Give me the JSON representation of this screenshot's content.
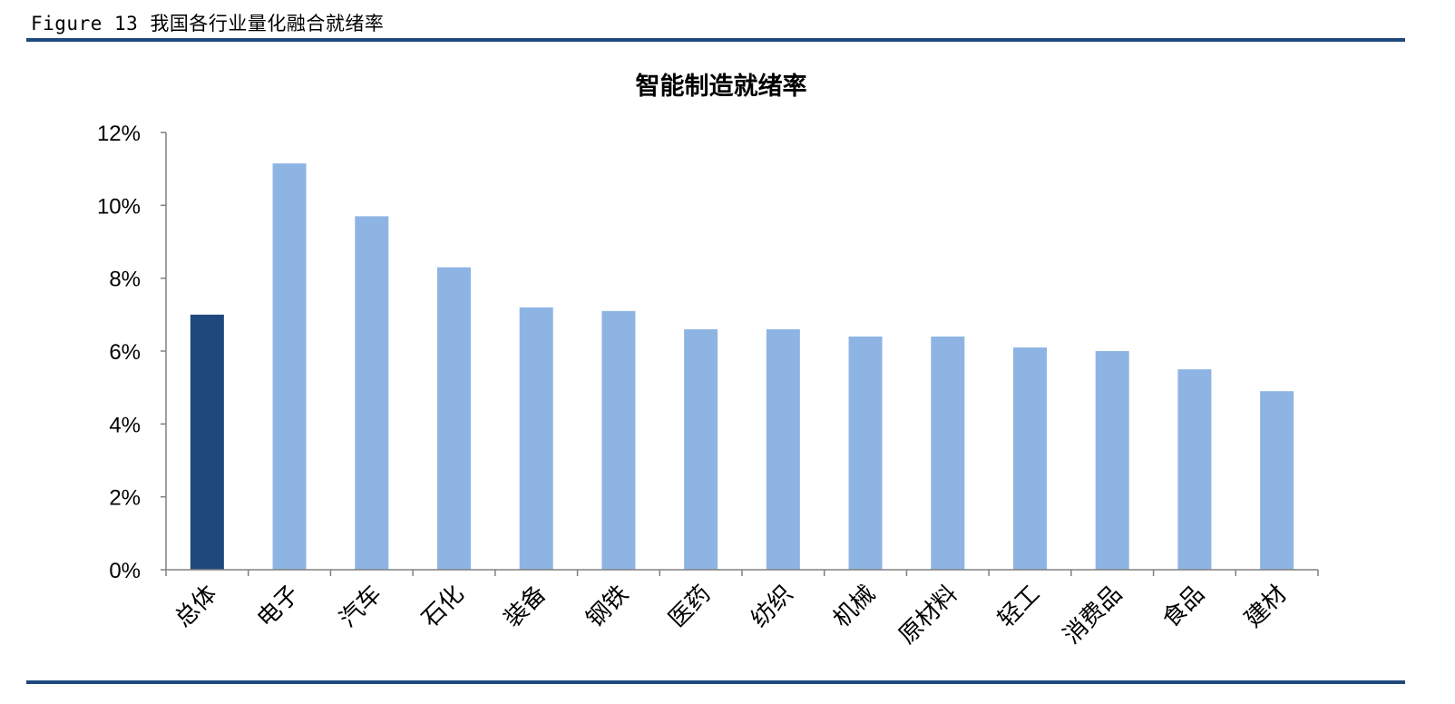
{
  "figure": {
    "caption": "Figure 13 我国各行业量化融合就绪率"
  },
  "chart_data": {
    "type": "bar",
    "title": "智能制造就绪率",
    "xlabel": "",
    "ylabel": "",
    "ylim": [
      0,
      0.12
    ],
    "yticks": [
      0,
      0.02,
      0.04,
      0.06,
      0.08,
      0.1,
      0.12
    ],
    "ytick_labels": [
      "0%",
      "2%",
      "4%",
      "6%",
      "8%",
      "10%",
      "12%"
    ],
    "categories": [
      "总体",
      "电子",
      "汽车",
      "石化",
      "装备",
      "钢铁",
      "医药",
      "纺织",
      "机械",
      "原材料",
      "轻工",
      "消费品",
      "食品",
      "建材"
    ],
    "values": [
      0.07,
      0.1115,
      0.097,
      0.083,
      0.072,
      0.071,
      0.066,
      0.066,
      0.064,
      0.064,
      0.061,
      0.06,
      0.055,
      0.049
    ],
    "bar_colors": [
      "#1f497d",
      "#8eb4e3",
      "#8eb4e3",
      "#8eb4e3",
      "#8eb4e3",
      "#8eb4e3",
      "#8eb4e3",
      "#8eb4e3",
      "#8eb4e3",
      "#8eb4e3",
      "#8eb4e3",
      "#8eb4e3",
      "#8eb4e3",
      "#8eb4e3"
    ],
    "axis_color": "#808080",
    "grid": false,
    "legend": "none"
  }
}
